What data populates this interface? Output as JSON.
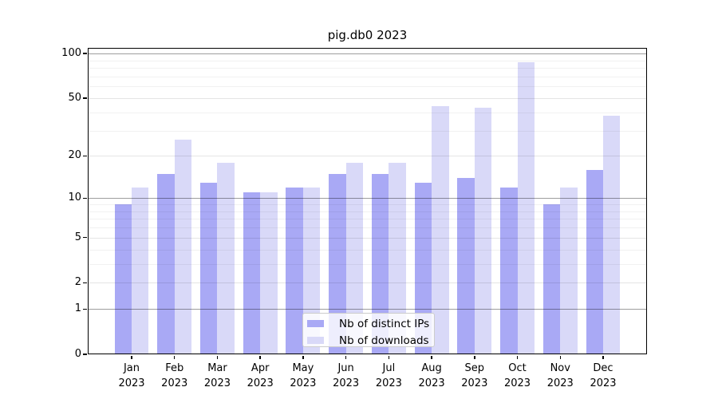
{
  "title": "pig.db0 2023",
  "chart_data": {
    "type": "bar",
    "title": "pig.db0 2023",
    "categories": [
      "Jan 2023",
      "Feb 2023",
      "Mar 2023",
      "Apr 2023",
      "May 2023",
      "Jun 2023",
      "Jul 2023",
      "Aug 2023",
      "Sep 2023",
      "Oct 2023",
      "Nov 2023",
      "Dec 2023"
    ],
    "series": [
      {
        "name": "Nb of distinct IPs",
        "color": "#a9a9f5",
        "values": [
          9,
          15,
          13,
          11,
          12,
          15,
          15,
          13,
          14,
          12,
          9,
          16
        ]
      },
      {
        "name": "Nb of downloads",
        "color": "#d9d9f8",
        "values": [
          12,
          26,
          18,
          11,
          12,
          18,
          18,
          44,
          43,
          88,
          12,
          38
        ]
      }
    ],
    "xlabel": "",
    "ylabel": "",
    "yscale": "log1p",
    "ylim": [
      0,
      109.3
    ],
    "y_ticks": [
      0,
      1,
      2,
      5,
      10,
      20,
      50,
      100
    ],
    "y_minor_ticks": [
      3,
      4,
      6,
      7,
      8,
      9,
      30,
      40,
      60,
      70,
      80,
      90
    ],
    "grid": true,
    "legend_position": "lower center",
    "bar_width": 0.4
  }
}
